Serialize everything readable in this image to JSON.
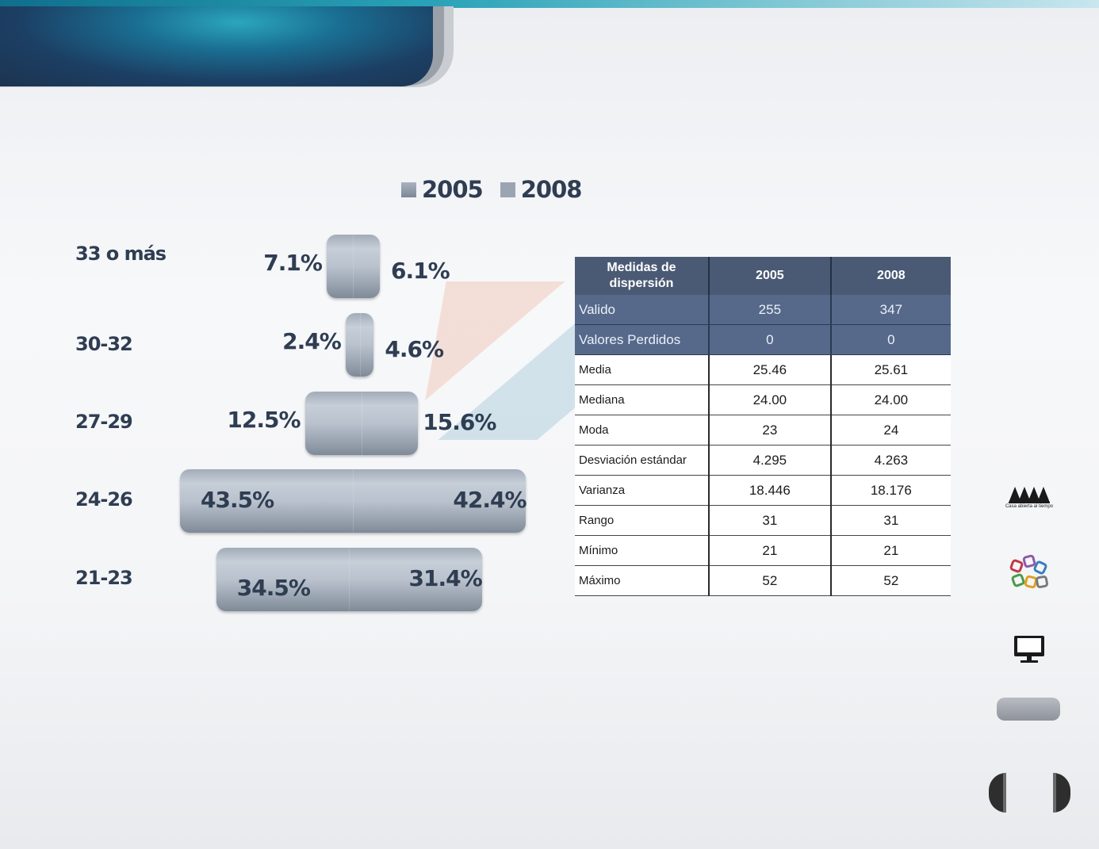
{
  "legend": [
    {
      "label": "2005",
      "color": "#8e99a7"
    },
    {
      "label": "2008",
      "color": "#9ba5b1"
    }
  ],
  "chart_data": {
    "type": "bar",
    "categories": [
      "33 o más",
      "30-32",
      "27-29",
      "24-26",
      "21-23"
    ],
    "series": [
      {
        "name": "2005",
        "values": [
          7.1,
          2.4,
          12.5,
          43.5,
          34.5
        ]
      },
      {
        "name": "2008",
        "values": [
          6.1,
          4.6,
          15.6,
          42.4,
          31.4
        ]
      }
    ],
    "value_labels": {
      "2005": [
        "7.1%",
        "2.4%",
        "12.5%",
        "43.5%",
        "34.5%"
      ],
      "2008": [
        "6.1%",
        "4.6%",
        "15.6%",
        "42.4%",
        "31.4%"
      ]
    },
    "orientation": "horizontal-pyramid",
    "title": "",
    "legend_position": "top"
  },
  "table": {
    "header": [
      "Medidas  de dispersión",
      "2005",
      "2008"
    ],
    "rows": [
      {
        "label": "Valido",
        "v2005": "255",
        "v2008": "347",
        "highlight": true
      },
      {
        "label": "Valores Perdidos",
        "v2005": "0",
        "v2008": "0",
        "highlight": true
      },
      {
        "label": "Media",
        "v2005": "25.46",
        "v2008": "25.61",
        "highlight": false
      },
      {
        "label": "Mediana",
        "v2005": "24.00",
        "v2008": "24.00",
        "highlight": false
      },
      {
        "label": "Moda",
        "v2005": "23",
        "v2008": "24",
        "highlight": false
      },
      {
        "label": "Desviación estándar",
        "v2005": "4.295",
        "v2008": "4.263",
        "highlight": false
      },
      {
        "label": "Varianza",
        "v2005": "18.446",
        "v2008": "18.176",
        "highlight": false
      },
      {
        "label": "Rango",
        "v2005": "31",
        "v2008": "31",
        "highlight": false
      },
      {
        "label": "Mínimo",
        "v2005": "21",
        "v2008": "21",
        "highlight": false
      },
      {
        "label": "Máximo",
        "v2005": "52",
        "v2008": "52",
        "highlight": false
      }
    ]
  },
  "sidebar": {
    "uam_caption": "Casa abierta al tiempo",
    "icons": [
      "uam-logo-icon",
      "network-logo-icon",
      "monitor-icon"
    ]
  },
  "colors": {
    "header_dark": "#1d3350",
    "header_accent": "#2ba6bd",
    "table_header": "#4a5a74",
    "table_highlight": "#56698a",
    "text_dark": "#2f3d52"
  }
}
